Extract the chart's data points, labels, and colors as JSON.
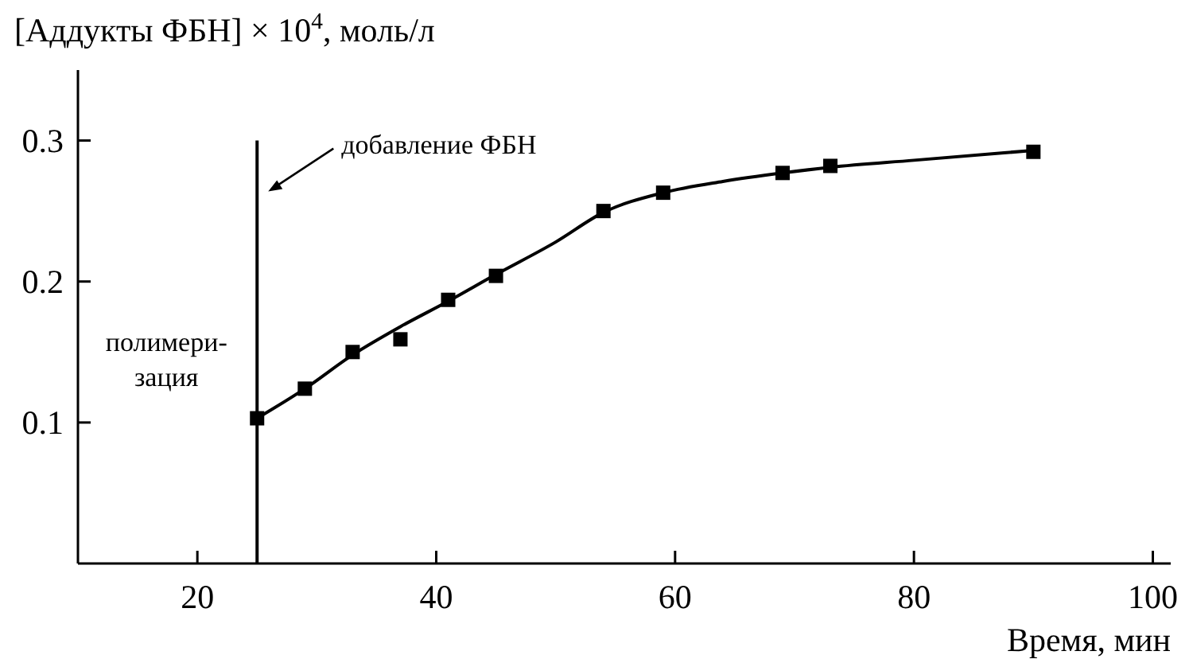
{
  "chart_data": {
    "type": "scatter",
    "xlabel": "Время, мин",
    "ylabel": "[Аддукты ФБН] × 10$^{4}$, моль/л",
    "xlim": [
      10,
      101.5
    ],
    "xticks": [
      20,
      40,
      60,
      80,
      100
    ],
    "ylim": [
      0,
      0.35
    ],
    "yticks": [
      0.1,
      0.2,
      0.3
    ],
    "grid": false,
    "marker": "square",
    "series": [
      {
        "type": "line",
        "color": "#000000",
        "marker": "none",
        "line_style": "solid",
        "x": [
          25,
          29,
          33,
          37,
          41,
          45,
          50,
          54,
          59,
          64,
          69,
          73,
          80,
          90
        ],
        "values": [
          0.103,
          0.124,
          0.148,
          0.168,
          0.186,
          0.205,
          0.228,
          0.249,
          0.263,
          0.271,
          0.277,
          0.281,
          0.286,
          0.293
        ]
      },
      {
        "color": "#000000",
        "x": [
          25,
          29,
          33,
          37,
          41,
          45,
          54,
          59,
          69,
          73,
          90
        ],
        "values": [
          0.103,
          0.124,
          0.15,
          0.159,
          0.187,
          0.204,
          0.25,
          0.263,
          0.277,
          0.282,
          0.292
        ]
      }
    ],
    "ref_lines": [
      {
        "axis": "x",
        "value": 25,
        "label": "добавление ФБН",
        "color": "#000000"
      }
    ],
    "annotations": [
      "полимери-\nзация"
    ]
  }
}
